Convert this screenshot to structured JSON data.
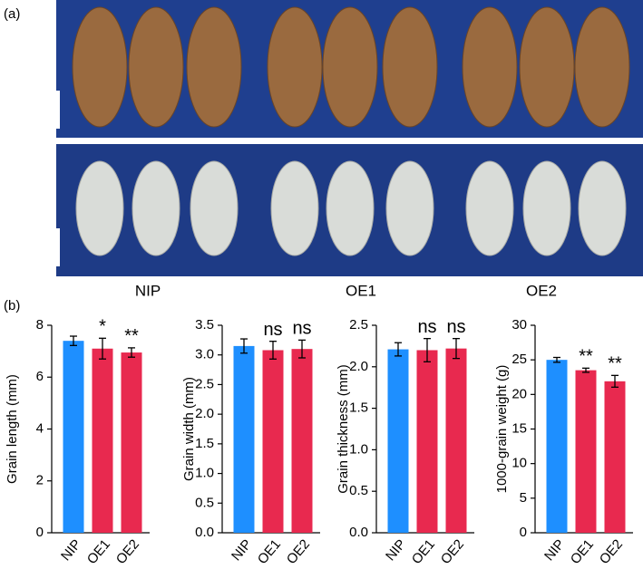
{
  "figure": {
    "panel_a": "(a)",
    "panel_b": "(b)",
    "photo_labels": [
      "NIP",
      "OE1",
      "OE2"
    ]
  },
  "chart_data": [
    {
      "type": "bar",
      "ylabel": "Grain length (mm)",
      "categories": [
        "NIP",
        "OE1",
        "OE2"
      ],
      "values": [
        7.4,
        7.1,
        6.95
      ],
      "errors": [
        0.18,
        0.4,
        0.18
      ],
      "annotations": [
        null,
        "*",
        "**"
      ],
      "colors": [
        "#1e8fff",
        "#e8294f",
        "#e8294f"
      ],
      "ylim": [
        0,
        8
      ],
      "yticks": [
        0,
        2,
        4,
        6,
        8
      ]
    },
    {
      "type": "bar",
      "ylabel": "Grain width (mm)",
      "categories": [
        "NIP",
        "OE1",
        "OE2"
      ],
      "values": [
        3.15,
        3.08,
        3.1
      ],
      "errors": [
        0.12,
        0.15,
        0.15
      ],
      "annotations": [
        null,
        "ns",
        "ns"
      ],
      "colors": [
        "#1e8fff",
        "#e8294f",
        "#e8294f"
      ],
      "ylim": [
        0,
        3.5
      ],
      "yticks": [
        {
          "value": 0,
          "label": "0.0"
        },
        0.5,
        {
          "value": 1,
          "label": "1.0"
        },
        1.5,
        {
          "value": 2,
          "label": "2.0"
        },
        2.5,
        {
          "value": 3,
          "label": "3.0"
        },
        3.5
      ]
    },
    {
      "type": "bar",
      "ylabel": "Grain thickness (mm)",
      "categories": [
        "NIP",
        "OE1",
        "OE2"
      ],
      "values": [
        2.21,
        2.2,
        2.22
      ],
      "errors": [
        0.08,
        0.14,
        0.12
      ],
      "annotations": [
        null,
        "ns",
        "ns"
      ],
      "colors": [
        "#1e8fff",
        "#e8294f",
        "#e8294f"
      ],
      "ylim": [
        0,
        2.5
      ],
      "yticks": [
        {
          "value": 0,
          "label": "0.0"
        },
        0.5,
        {
          "value": 1,
          "label": "1.0"
        },
        1.5,
        {
          "value": 2,
          "label": "2.0"
        },
        2.5
      ]
    },
    {
      "type": "bar",
      "ylabel": "1000-grain weight (g)",
      "categories": [
        "NIP",
        "OE1",
        "OE2"
      ],
      "values": [
        25.0,
        23.5,
        21.9
      ],
      "errors": [
        0.35,
        0.3,
        0.85
      ],
      "annotations": [
        null,
        "**",
        "**"
      ],
      "colors": [
        "#1e8fff",
        "#e8294f",
        "#e8294f"
      ],
      "ylim": [
        0,
        30
      ],
      "yticks": [
        0,
        5,
        10,
        15,
        20,
        25,
        30
      ]
    }
  ]
}
